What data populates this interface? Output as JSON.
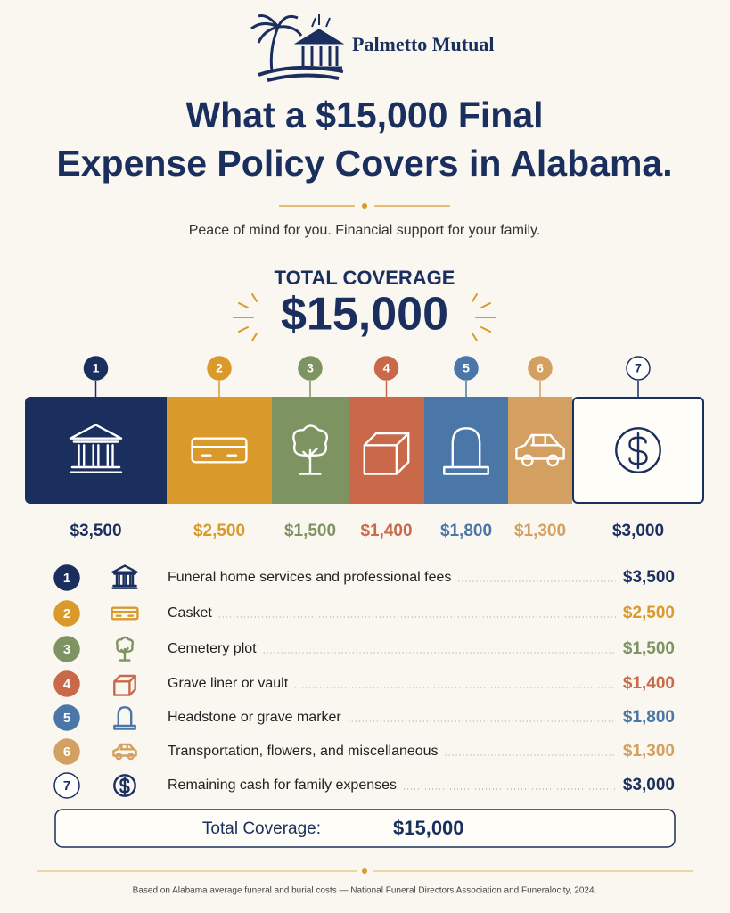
{
  "header": {
    "brand": "Palmetto Mutual",
    "title_line1": "What a $15,000 Final",
    "title_line2": "Expense Policy Covers in Alabama.",
    "subtitle": "Peace of mind for you. Financial support for your family."
  },
  "total": {
    "label": "TOTAL COVERAGE",
    "amount": "$15,000"
  },
  "items": [
    {
      "number": "1",
      "amount": "$3,500",
      "label": "Funeral home services and professional fees",
      "color": "#1b2f5e"
    },
    {
      "number": "2",
      "amount": "$2,500",
      "label": "Casket",
      "color": "#d99a2b"
    },
    {
      "number": "3",
      "amount": "$1,500",
      "label": "Cemetery plot",
      "color": "#7d9462"
    },
    {
      "number": "4",
      "amount": "$1,400",
      "label": "Grave liner or vault",
      "color": "#c9694a"
    },
    {
      "number": "5",
      "amount": "$1,800",
      "label": "Headstone or grave marker",
      "color": "#4a76a8"
    },
    {
      "number": "6",
      "amount": "$1,300",
      "label": "Transportation, flowers, and miscellaneous",
      "color": "#d4a062"
    },
    {
      "number": "7",
      "amount": "$3,000",
      "label": "Remaining cash for family expenses",
      "color": "#1b2f5e"
    }
  ],
  "summary": {
    "label": "Total Coverage:",
    "amount": "$15,000"
  },
  "footnote": "Based on Alabama average funeral and burial costs — National Funeral Directors Association and Funeralocity, 2024."
}
